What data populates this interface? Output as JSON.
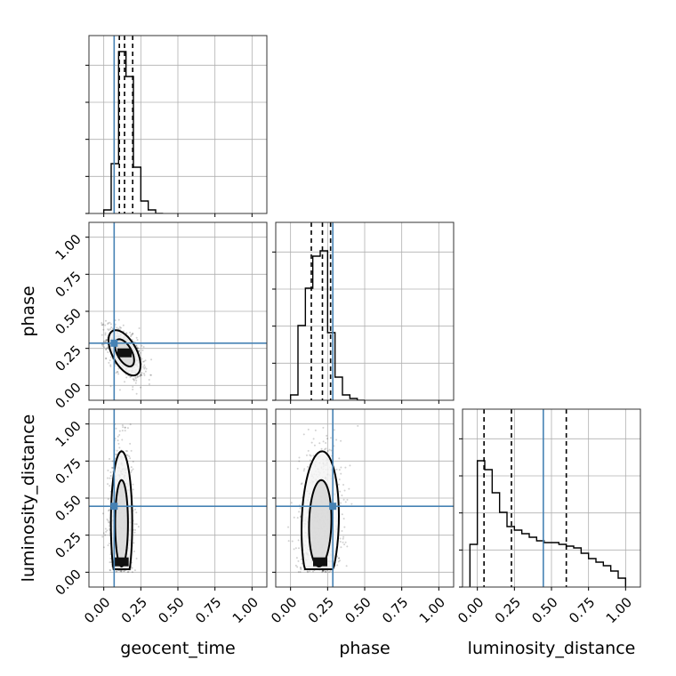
{
  "colors": {
    "truth": "#4682b4",
    "hist": "#000000",
    "grid": "#b0b0b0",
    "samples": "#000000"
  },
  "chart_data": {
    "type": "corner",
    "parameters": [
      "geocent_time",
      "phase",
      "luminosity_distance"
    ],
    "axis_range": [
      -0.1,
      1.1
    ],
    "ticks": [
      0.0,
      0.25,
      0.5,
      0.75,
      1.0
    ],
    "tick_labels": [
      "0.00",
      "0.25",
      "0.50",
      "0.75",
      "1.00"
    ],
    "grid": true,
    "truths": {
      "geocent_time": 0.07,
      "phase": 0.285,
      "luminosity_distance": 0.445
    },
    "histograms": [
      {
        "parameter": "geocent_time",
        "bin_edges": [
          0.0,
          0.05,
          0.1,
          0.15,
          0.2,
          0.25,
          0.3,
          0.35,
          0.4
        ],
        "values": [
          0.02,
          0.28,
          0.91,
          0.77,
          0.26,
          0.07,
          0.02,
          0.0
        ],
        "quantiles": [
          0.105,
          0.14,
          0.195
        ]
      },
      {
        "parameter": "phase",
        "bin_edges": [
          0.0,
          0.05,
          0.1,
          0.15,
          0.2,
          0.25,
          0.3,
          0.35,
          0.4,
          0.45,
          0.5
        ],
        "values": [
          0.03,
          0.42,
          0.63,
          0.81,
          0.84,
          0.38,
          0.13,
          0.03,
          0.01,
          0.0
        ],
        "quantiles": [
          0.14,
          0.215,
          0.27
        ]
      },
      {
        "parameter": "luminosity_distance",
        "bin_edges": [
          -0.05,
          0.0,
          0.05,
          0.1,
          0.15,
          0.2,
          0.25,
          0.3,
          0.35,
          0.4,
          0.45,
          0.5,
          0.55,
          0.6,
          0.65,
          0.7,
          0.75,
          0.8,
          0.85,
          0.9,
          0.95,
          1.0
        ],
        "values": [
          0.24,
          0.71,
          0.66,
          0.53,
          0.42,
          0.34,
          0.32,
          0.3,
          0.28,
          0.26,
          0.25,
          0.25,
          0.24,
          0.23,
          0.22,
          0.19,
          0.16,
          0.14,
          0.12,
          0.09,
          0.05
        ],
        "quantiles": [
          0.045,
          0.23,
          0.6
        ]
      }
    ],
    "scatter_panels": [
      {
        "x": "geocent_time",
        "y": "phase",
        "center": [
          0.14,
          0.22
        ],
        "spread": [
          0.06,
          0.085
        ],
        "rho": -0.55
      },
      {
        "x": "geocent_time",
        "y": "luminosity_distance",
        "center": [
          0.12,
          0.33
        ],
        "spread": [
          0.04,
          0.27
        ],
        "rho": 0.0
      },
      {
        "x": "phase",
        "y": "luminosity_distance",
        "center": [
          0.2,
          0.33
        ],
        "spread": [
          0.07,
          0.27
        ],
        "rho": 0.1
      }
    ]
  }
}
